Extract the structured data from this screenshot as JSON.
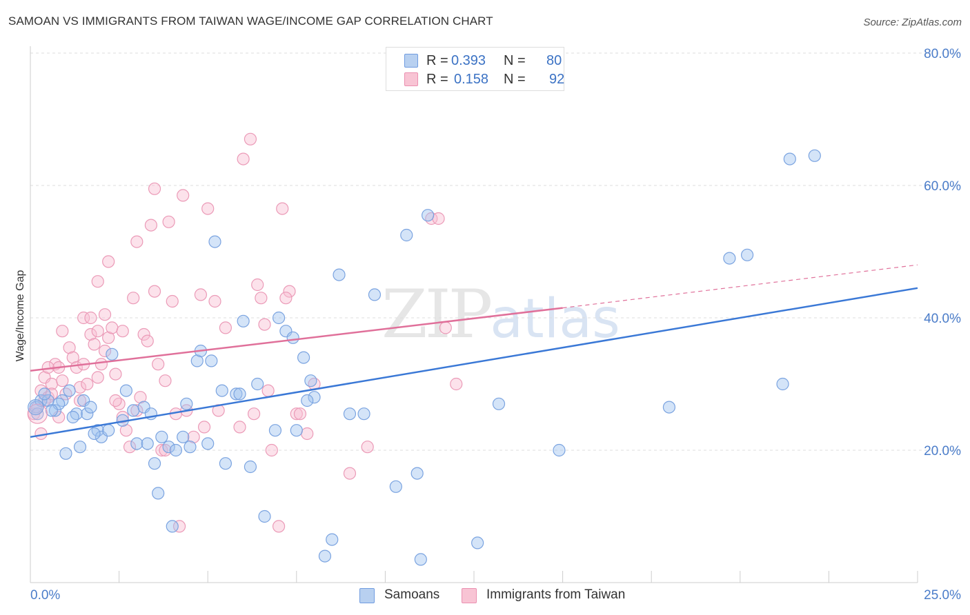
{
  "title": "SAMOAN VS IMMIGRANTS FROM TAIWAN WAGE/INCOME GAP CORRELATION CHART",
  "source": "Source: ZipAtlas.com",
  "watermark": {
    "zip": "ZIP",
    "atlas": "atlas"
  },
  "legend": {
    "r_label": "R =",
    "n_label": "N =",
    "rows": [
      {
        "r": "0.393",
        "n": "80",
        "color": "#b8d0f0",
        "border": "#6f9be0"
      },
      {
        "r": "0.158",
        "n": "92",
        "color": "#f8c4d4",
        "border": "#eb8fb0"
      }
    ]
  },
  "bottom_legend": [
    {
      "label": "Samoans",
      "color": "#b8d0f0",
      "border": "#6f9be0"
    },
    {
      "label": "Immigrants from Taiwan",
      "color": "#f8c4d4",
      "border": "#eb8fb0"
    }
  ],
  "chart_data": {
    "type": "scatter",
    "title": "SAMOAN VS IMMIGRANTS FROM TAIWAN WAGE/INCOME GAP CORRELATION CHART",
    "xlabel": "",
    "ylabel": "Wage/Income Gap",
    "xlim": [
      0,
      25
    ],
    "ylim": [
      0,
      80
    ],
    "x_tick_labels": [
      "0.0%",
      "25.0%"
    ],
    "y_ticks": [
      20,
      40,
      60,
      80
    ],
    "y_tick_labels": [
      "20.0%",
      "40.0%",
      "60.0%",
      "80.0%"
    ],
    "series": [
      {
        "name": "Samoans",
        "color": "#3a78d6",
        "fill": "rgba(160,195,240,0.45)",
        "stroke": "#7aa3e0",
        "trend": {
          "x0": 0,
          "y0": 22.0,
          "x1": 25,
          "y1": 44.5,
          "dashed_to": 25
        },
        "points": [
          [
            0.15,
            26.5
          ],
          [
            0.3,
            27.5
          ],
          [
            0.2,
            25.5
          ],
          [
            0.5,
            27.5
          ],
          [
            0.4,
            28.5
          ],
          [
            0.7,
            26
          ],
          [
            0.9,
            27.5
          ],
          [
            1.1,
            29
          ],
          [
            0.8,
            27
          ],
          [
            1.3,
            25.5
          ],
          [
            1.5,
            27.5
          ],
          [
            1.2,
            25
          ],
          [
            1.6,
            25.5
          ],
          [
            1.7,
            26.5
          ],
          [
            1.9,
            23
          ],
          [
            2.0,
            22
          ],
          [
            2.3,
            34.5
          ],
          [
            2.7,
            29
          ],
          [
            3.0,
            21
          ],
          [
            2.9,
            26
          ],
          [
            3.2,
            26.5
          ],
          [
            3.4,
            25.5
          ],
          [
            3.5,
            18
          ],
          [
            3.7,
            22
          ],
          [
            3.9,
            20.5
          ],
          [
            4.1,
            20
          ],
          [
            4.3,
            22
          ],
          [
            4.5,
            20.5
          ],
          [
            4.7,
            33.5
          ],
          [
            4.8,
            35
          ],
          [
            5.0,
            21
          ],
          [
            5.1,
            33.5
          ],
          [
            5.4,
            29
          ],
          [
            5.2,
            51.5
          ],
          [
            5.5,
            18
          ],
          [
            5.8,
            28.5
          ],
          [
            6.0,
            39.5
          ],
          [
            6.4,
            30
          ],
          [
            6.2,
            17.5
          ],
          [
            6.6,
            10
          ],
          [
            7.0,
            40
          ],
          [
            7.2,
            38
          ],
          [
            7.4,
            37
          ],
          [
            7.7,
            34
          ],
          [
            7.5,
            23
          ],
          [
            7.9,
            30.5
          ],
          [
            8.0,
            28
          ],
          [
            8.3,
            4
          ],
          [
            8.5,
            6.5
          ],
          [
            8.7,
            46.5
          ],
          [
            9.0,
            25.5
          ],
          [
            9.4,
            25.5
          ],
          [
            9.7,
            43.5
          ],
          [
            10.3,
            14.5
          ],
          [
            10.6,
            52.5
          ],
          [
            10.9,
            16.5
          ],
          [
            11.0,
            3.5
          ],
          [
            11.2,
            55.5
          ],
          [
            12.6,
            6
          ],
          [
            13.2,
            27
          ],
          [
            14.9,
            20
          ],
          [
            18.0,
            26.5
          ],
          [
            19.7,
            49
          ],
          [
            20.2,
            49.5
          ],
          [
            21.4,
            64
          ],
          [
            21.2,
            30
          ],
          [
            22.1,
            64.5
          ],
          [
            1.0,
            19.5
          ],
          [
            3.6,
            13.5
          ],
          [
            4.0,
            8.5
          ],
          [
            1.4,
            20.5
          ],
          [
            2.6,
            24.5
          ],
          [
            5.9,
            28.5
          ],
          [
            7.8,
            27.5
          ],
          [
            4.4,
            27
          ],
          [
            2.2,
            23
          ],
          [
            3.3,
            21
          ],
          [
            6.9,
            23
          ],
          [
            1.8,
            22.5
          ],
          [
            0.6,
            26
          ]
        ]
      },
      {
        "name": "Immigrants from Taiwan",
        "color": "#e0709a",
        "fill": "rgba(248,190,210,0.45)",
        "stroke": "#eb9ab7",
        "trend": {
          "x0": 0,
          "y0": 32.0,
          "x1": 15,
          "y1": 41.5,
          "dashed_to": 25,
          "y_end": 48.0
        },
        "points": [
          [
            0.1,
            25.5
          ],
          [
            0.2,
            26.5
          ],
          [
            0.3,
            29
          ],
          [
            0.4,
            31
          ],
          [
            0.5,
            28
          ],
          [
            0.6,
            30
          ],
          [
            0.7,
            33
          ],
          [
            0.8,
            32.5
          ],
          [
            0.9,
            30.5
          ],
          [
            1.0,
            28.5
          ],
          [
            1.1,
            35.5
          ],
          [
            1.2,
            34
          ],
          [
            1.3,
            32.5
          ],
          [
            1.4,
            29.5
          ],
          [
            1.5,
            33
          ],
          [
            1.6,
            30
          ],
          [
            1.7,
            37.5
          ],
          [
            1.8,
            36
          ],
          [
            1.9,
            38
          ],
          [
            2.0,
            33
          ],
          [
            2.1,
            35
          ],
          [
            2.2,
            37
          ],
          [
            2.3,
            38.5
          ],
          [
            2.4,
            31.5
          ],
          [
            2.5,
            27
          ],
          [
            2.6,
            25
          ],
          [
            2.7,
            23
          ],
          [
            2.8,
            20.5
          ],
          [
            2.9,
            43
          ],
          [
            3.0,
            51.5
          ],
          [
            3.1,
            28
          ],
          [
            3.2,
            37.5
          ],
          [
            3.3,
            36.5
          ],
          [
            3.4,
            54
          ],
          [
            3.5,
            59.5
          ],
          [
            3.6,
            33
          ],
          [
            3.7,
            20
          ],
          [
            3.8,
            20
          ],
          [
            3.9,
            54.5
          ],
          [
            4.0,
            42.5
          ],
          [
            4.1,
            25.5
          ],
          [
            4.3,
            58.5
          ],
          [
            4.6,
            22
          ],
          [
            4.8,
            43.5
          ],
          [
            5.0,
            56.5
          ],
          [
            5.2,
            42.5
          ],
          [
            5.5,
            38.5
          ],
          [
            6.0,
            64
          ],
          [
            6.2,
            67
          ],
          [
            6.4,
            45
          ],
          [
            6.5,
            43
          ],
          [
            6.7,
            29
          ],
          [
            6.8,
            20
          ],
          [
            7.0,
            8.5
          ],
          [
            7.1,
            56.5
          ],
          [
            7.3,
            44
          ],
          [
            7.5,
            25.5
          ],
          [
            7.6,
            25.5
          ],
          [
            7.8,
            22.5
          ],
          [
            8.0,
            30
          ],
          [
            1.9,
            45.5
          ],
          [
            2.2,
            48.5
          ],
          [
            1.5,
            40
          ],
          [
            1.7,
            40
          ],
          [
            0.9,
            38
          ],
          [
            0.5,
            32.5
          ],
          [
            0.3,
            22.5
          ],
          [
            11.3,
            55
          ],
          [
            11.5,
            55
          ],
          [
            12.0,
            30
          ],
          [
            11.7,
            38.5
          ],
          [
            9.0,
            16.5
          ],
          [
            9.5,
            20.5
          ],
          [
            5.9,
            23.5
          ],
          [
            6.3,
            25.5
          ],
          [
            4.2,
            8.5
          ],
          [
            4.9,
            23.5
          ],
          [
            2.6,
            38
          ],
          [
            2.1,
            40.5
          ],
          [
            3.5,
            44
          ],
          [
            3.8,
            30.5
          ],
          [
            6.6,
            39
          ],
          [
            7.2,
            43
          ],
          [
            0.4,
            27.5
          ],
          [
            0.8,
            25
          ],
          [
            1.4,
            27.5
          ],
          [
            1.9,
            31
          ],
          [
            2.4,
            27.5
          ],
          [
            3.0,
            26
          ],
          [
            4.4,
            26
          ],
          [
            5.3,
            26
          ],
          [
            0.6,
            28.5
          ]
        ]
      }
    ]
  }
}
